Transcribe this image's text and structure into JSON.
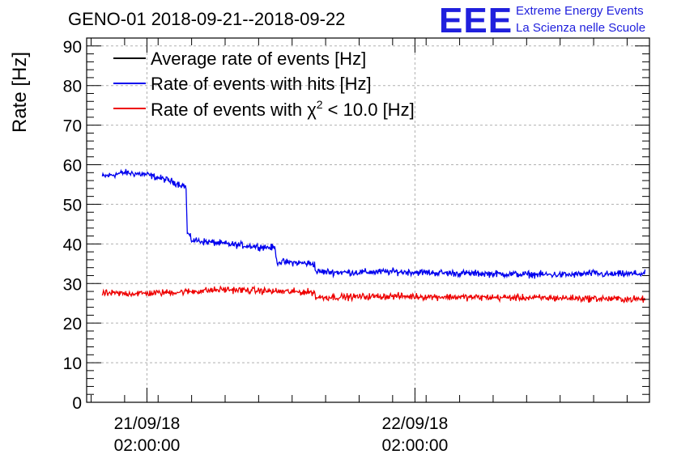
{
  "header": {
    "title": "GENO-01 2018-09-21--2018-09-22",
    "logo_mark": "EEE",
    "logo_line1": "Extreme Energy Events",
    "logo_line2": "La Scienza nelle Scuole"
  },
  "chart_data": {
    "type": "line",
    "title": "GENO-01 2018-09-21--2018-09-22",
    "ylabel": "Rate [Hz]",
    "xlabel": "",
    "ylim": [
      0,
      92
    ],
    "y_ticks": [
      0,
      10,
      20,
      30,
      40,
      50,
      60,
      70,
      80,
      90
    ],
    "x_unit": "hours since 21/09/18 00:00:00",
    "xlim": [
      -3.4,
      47.0
    ],
    "x_ticks": [
      {
        "x": 2,
        "date": "21/09/18",
        "time": "02:00:00"
      },
      {
        "x": 26,
        "date": "22/09/18",
        "time": "02:00:00"
      }
    ],
    "grid": true,
    "legend_position": "top-left",
    "series": [
      {
        "name": "Average rate of events [Hz]",
        "color": "#000000",
        "x": [],
        "y": []
      },
      {
        "name": "Rate of events with hits [Hz]",
        "color": "#0000ee",
        "noise": 0.9,
        "x": [
          -2.0,
          0.0,
          2.0,
          4.0,
          5.5,
          5.6,
          6.0,
          9.0,
          13.5,
          13.6,
          17.0,
          17.1,
          20.0,
          24.0,
          28.0,
          32.0,
          36.0,
          40.0,
          42.0,
          43.0,
          46.6
        ],
        "y": [
          57.0,
          58.0,
          57.5,
          56.0,
          54.5,
          43.0,
          41.0,
          40.0,
          39.0,
          35.5,
          35.0,
          33.0,
          32.8,
          33.0,
          32.7,
          32.5,
          32.3,
          32.2,
          32.6,
          32.3,
          32.5
        ]
      },
      {
        "name": "Rate of events with χ² < 10.0 [Hz]",
        "legend_main": "Rate of events with χ",
        "legend_sup": "2",
        "legend_tail": " < 10.0 [Hz]",
        "color": "#ee0000",
        "noise": 0.9,
        "x": [
          -2.0,
          2.0,
          6.0,
          9.0,
          13.5,
          17.0,
          17.1,
          24.0,
          32.0,
          40.0,
          46.6
        ],
        "y": [
          27.5,
          27.5,
          28.0,
          28.5,
          28.0,
          27.8,
          26.5,
          26.8,
          26.5,
          26.3,
          26.0
        ]
      }
    ]
  }
}
